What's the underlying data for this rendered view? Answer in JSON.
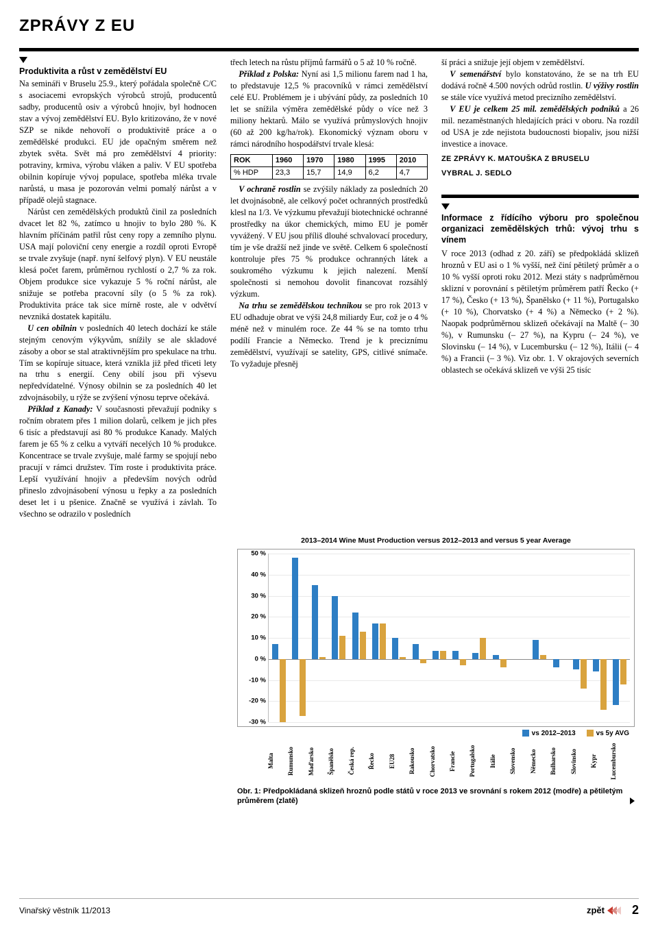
{
  "heading": "ZPRÁVY Z EU",
  "article1": {
    "title": "Produktivita a růst v zemědělství EU",
    "p1": "Na semináři v Bruselu 25.9., který pořádala společně C/C s asociacemi evropských výrobců strojů, producentů sadby, producentů osiv a výrobců hnojiv, byl hodnocen stav a vývoj zemědělství EU. Bylo kritizováno, že v nové SZP se nikde nehovoří o produktivitě práce a o zemědělské produkci. EU jde opačným směrem než zbytek světa. Svět má pro zemědělství 4 priority: potraviny, krmiva, výrobu vláken a paliv. V EU spotřeba obilnin kopíruje vývoj populace, spotřeba mléka trvale narůstá, u masa je pozorován velmi pomalý nárůst a v případě olejů stagnace.",
    "p2": "Nárůst cen zemědělských produktů činil za posledních dvacet let 82 %, zatímco u hnojiv to bylo 280 %. K hlavním příčinám patřil růst ceny ropy a zemního plynu. USA mají poloviční ceny energie a rozdíl oproti Evropě se trvale zvyšuje (např. nyní šelfový plyn). V EU neustále klesá počet farem, průměrnou rychlostí o 2,7 % za rok. Objem produkce sice vykazuje 5 % roční nárůst, ale snižuje se potřeba pracovní síly (o 5 % za rok). Produktivita práce tak sice mírně roste, ale v odvětví nevzniká dostatek kapitálu.",
    "p3a": "U cen obilnin",
    "p3b": " v posledních 40 letech dochází ke stále stejným cenovým výkyvům, snížily se ale skladové zásoby a obor se stal atraktivnějším pro spekulace na trhu. Tím se kopíruje situace, která vznikla již před třiceti lety na trhu s energií. Ceny obilí jsou při výsevu nepředvídatelné. Výnosy obilnin se za posledních 40 let zdvojnásobily, u rýže se zvýšení výnosu teprve očekává.",
    "p4a": "Příklad z Kanady:",
    "p4b": " V současnosti převažují podniky s ročním obratem přes 1 milion dolarů, celkem je jich přes 6 tisíc a představují asi 80 % produkce Kanady. Malých farem je 65 % z celku a vytváří necelých 10 % produkce. Koncentrace se trvale zvyšuje, malé farmy se spojují nebo pracují v rámci družstev. Tím roste i produktivita práce. Lepší využívání hnojiv a především nových odrůd přineslo zdvojnásobení výnosu u řepky a za posledních deset let i u pšenice. Značně se využívá i závlah. To všechno se odrazilo v posledních ",
    "p5": "třech letech na růstu příjmů farmářů o 5 až 10 % ročně.",
    "p6a": "Příklad z Polska:",
    "p6b": " Nyní asi 1,5 milionu farem nad 1 ha, to představuje 12,5 % pracovníků v rámci zemědělství celé EU. Problémem je i ubývání půdy, za posledních 10 let se snížila výměra zemědělské půdy o více než 3 miliony hektarů. Málo se využívá průmyslových hnojiv (60 až 200 kg/ha/rok). Ekonomický význam oboru v rámci národního hospodářství trvale klesá:",
    "table": {
      "headers": [
        "ROK",
        "1960",
        "1970",
        "1980",
        "1995",
        "2010"
      ],
      "row": [
        "% HDP",
        "23,3",
        "15,7",
        "14,9",
        "6,2",
        "4,7"
      ]
    },
    "p7a": "V ochraně rostlin",
    "p7b": " se zvýšily náklady za posledních 20 let dvojnásobně, ale celkový počet ochranných prostředků klesl na 1/3. Ve výzkumu převažují biotechnické ochranné prostředky na úkor chemických, mimo EU je poměr vyvážený. V EU jsou příliš dlouhé schvalovací procedury, tím je vše dražší než jinde ve světě. Celkem 6 společností kontroluje přes 75 % produkce ochranných látek a soukromého výzkumu k jejich nalezení. Menší společnosti si nemohou dovolit financovat rozsáhlý výzkum.",
    "p8a": "Na trhu se zemědělskou technikou",
    "p8b": " se pro rok 2013 v EU odhaduje obrat ve výši 24,8 miliardy Eur, což je o 4 % méně než v minulém roce. Ze 44 % se na tomto trhu podílí Francie a Německo. Trend je k preciznímu zemědělství, využívají se satelity, GPS, citlivé snímače. To vyžaduje přesněj",
    "p9": "ší práci a snižuje její objem v zemědělství.",
    "p10a": "V semenářství",
    "p10b": " bylo konstatováno, že se na trh EU dodává ročně 4.500 nových odrůd rostlin. ",
    "p10c": "U výživy rostlin",
    "p10d": " se stále více využívá metod precizního zemědělství.",
    "p11a": "V EU je celkem 25 mil. zemědělských podniků",
    "p11b": " a 26 mil. nezaměstnaných hledajících práci v oboru. Na rozdíl od USA je zde nejistota budoucnosti biopaliv, jsou nižší investice a inovace.",
    "byline1": "ZE ZPRÁVY K. MATOUŠKA Z BRUSELU",
    "byline2": "VYBRAL J. SEDLO"
  },
  "article2": {
    "title": "Informace z řídícího výboru pro společnou organizaci zemědělských trhů: vývoj trhu s vínem",
    "p1": "V roce 2013 (odhad z 20. září) se předpokládá sklizeň hroznů v EU asi o 1 % vyšší, než činí pětiletý průměr a o 10 % vyšší oproti roku 2012. Mezi státy s nadprůměrnou sklizní v porovnání s pětiletým průměrem patří Řecko (+ 17 %), Česko (+ 13 %), Španělsko (+ 11 %), Portugalsko (+ 10 %), Chorvatsko (+ 4 %) a Německo (+ 2 %). Naopak podprůměrnou sklizeň očekávají na Maltě (– 30 %), v Rumunsku (– 27 %), na Kypru (– 24 %), ve Slovinsku (– 14 %), v Lucembursku (– 12 %), Itálii (– 4 %) a Francii (– 3 %). Viz obr. 1. V okrajových severních oblastech se očekává sklizeň ve výši 25 tisíc"
  },
  "chart": {
    "title": "2013–2014 Wine Must Production versus 2012–2013 and versus 5 year Average",
    "ylim": [
      -30,
      50
    ],
    "ytick_step": 10,
    "ylabels": [
      "50 %",
      "40 %",
      "30 %",
      "20 %",
      "10 %",
      "0 %",
      "-10 %",
      "-20 %",
      "-30 %"
    ],
    "series": [
      {
        "name": "vs 2012–2013",
        "color": "#2d7ec4"
      },
      {
        "name": "vs 5y AVG",
        "color": "#d9a33e"
      }
    ],
    "categories": [
      "Malta",
      "Rumunsko",
      "Maďarsko",
      "Španělsko",
      "Česká rep.",
      "Řecko",
      "EU28",
      "Rakousko",
      "Chorvatsko",
      "Francie",
      "Portugalsko",
      "Itálie",
      "Slovensko",
      "Německo",
      "Bulharsko",
      "Slovinsko",
      "Kypr",
      "Lucembursko"
    ],
    "values_a": [
      7,
      48,
      35,
      30,
      22,
      17,
      10,
      7,
      4,
      4,
      3,
      2,
      0,
      9,
      -4,
      -5,
      -6,
      -22
    ],
    "values_b": [
      -30,
      -27,
      1,
      11,
      13,
      17,
      1,
      -2,
      4,
      -3,
      10,
      -4,
      0,
      2,
      0,
      -14,
      -24,
      -12
    ],
    "background_color": "#ffffff",
    "grid_color": "#e9e9e9",
    "zero_line_color": "#888888"
  },
  "caption": "Obr. 1: Předpokládaná sklizeň hroznů podle států v roce 2013 ve srovnání s rokem 2012 (modře) a pětiletým průměrem (zlatě)",
  "footer": {
    "left": "Vinařský věstník 11/2013",
    "back": "zpět",
    "page": "2",
    "chevron_colors": [
      "#c73a2e",
      "#d98a84",
      "#eec9c6"
    ]
  }
}
